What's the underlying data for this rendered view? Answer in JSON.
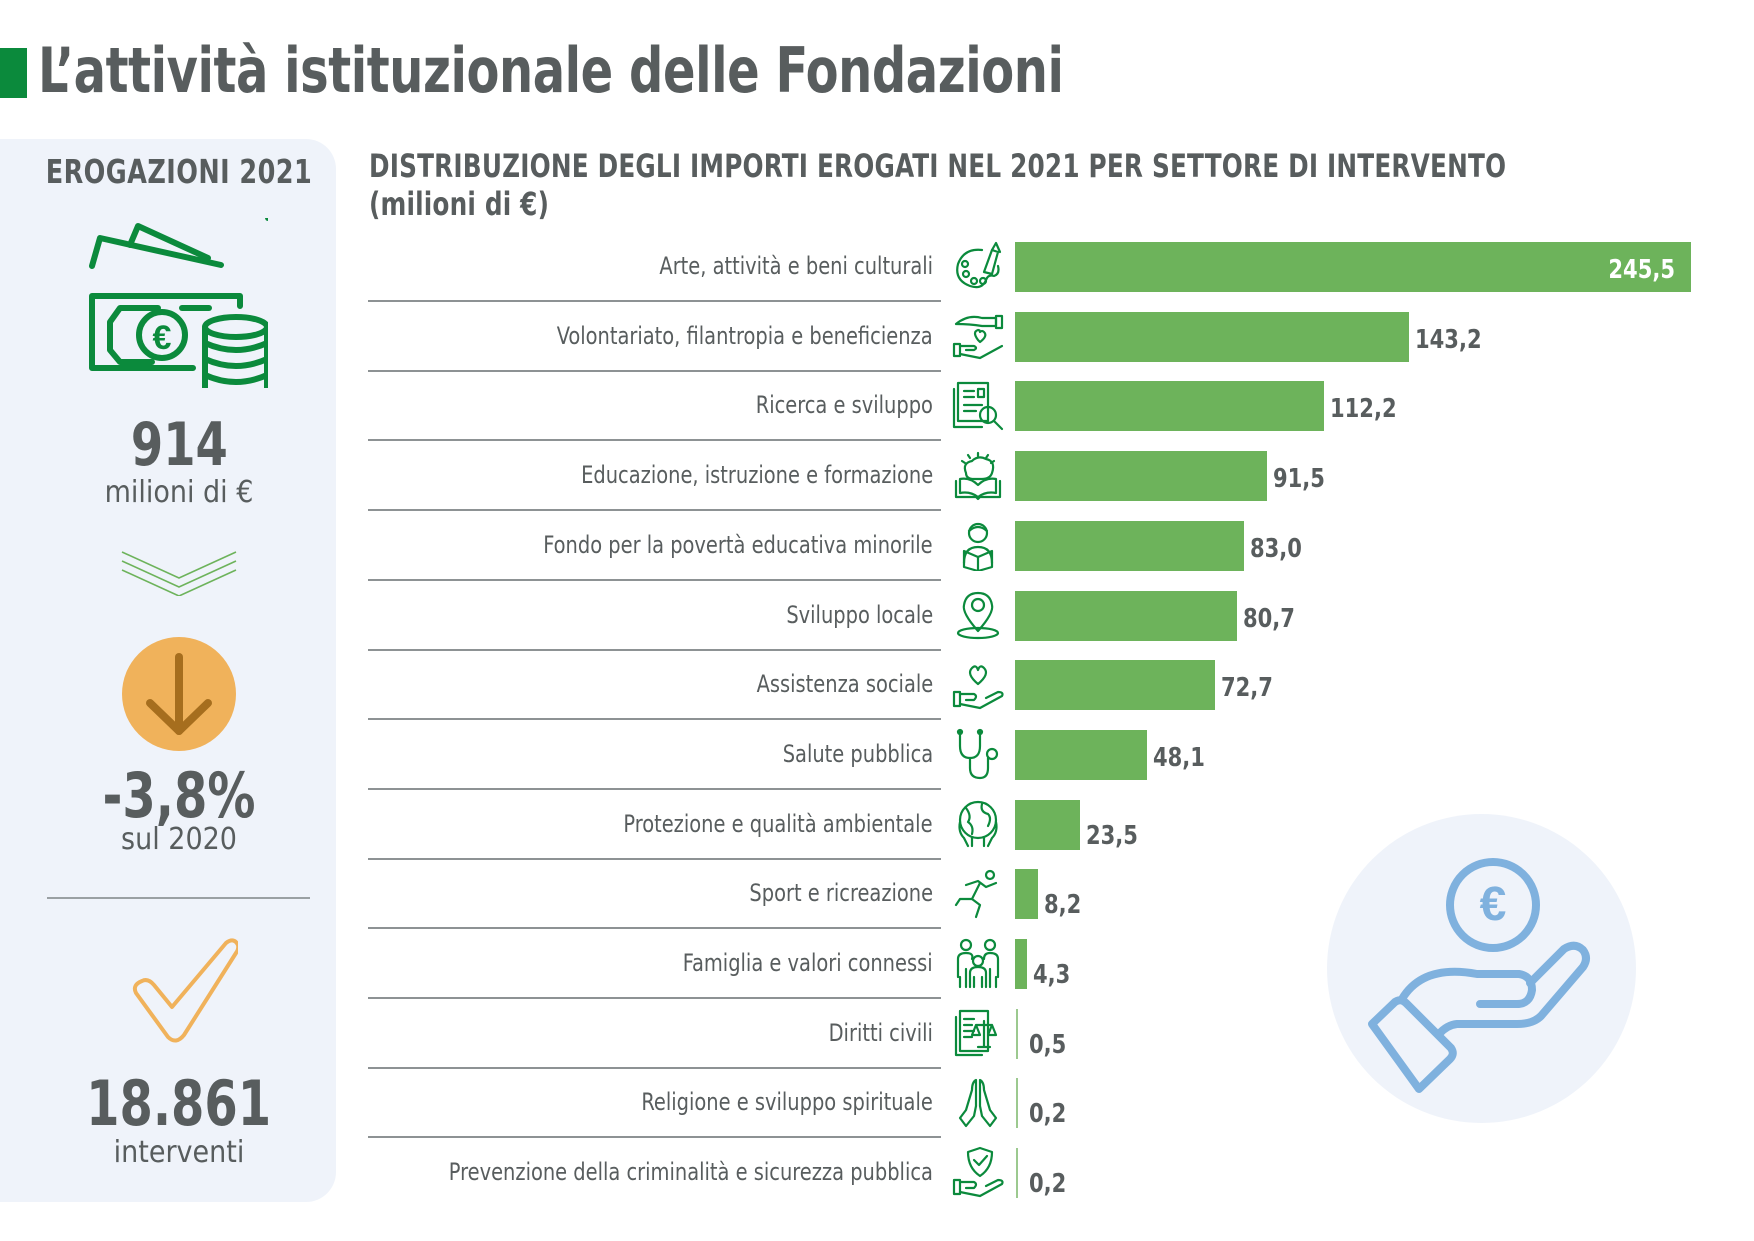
{
  "page": {
    "title": "L’attività istituzionale delle Fondazioni",
    "accent_color": "#0b8a3c"
  },
  "summary": {
    "heading": "EROGAZIONI 2021",
    "money_icon": "banknotes-coins-icon",
    "total_value": "914",
    "total_unit": "milioni di €",
    "trend_icon": "chevrons-down-icon",
    "change_icon": "arrow-down-circle-icon",
    "change_value": "-3,8%",
    "change_label": "sul 2020",
    "count_icon": "checkmark-icon",
    "count_value": "18.861",
    "count_label": "interventi",
    "change_color": "#f0b25b"
  },
  "chart_data": {
    "type": "bar",
    "orientation": "horizontal",
    "title": "DISTRIBUZIONE DEGLI IMPORTI EROGATI NEL 2021 PER SETTORE DI INTERVENTO",
    "subtitle": "(milioni di €)",
    "xlabel": "",
    "ylabel": "",
    "xlim": [
      0,
      245.5
    ],
    "bar_color": "#6db35b",
    "categories": [
      "Arte, attività e beni culturali",
      "Volontariato, filantropia e beneficienza",
      "Ricerca e sviluppo",
      "Educazione, istruzione e formazione",
      "Fondo per la povertà educativa minorile",
      "Sviluppo locale",
      "Assistenza sociale",
      "Salute pubblica",
      "Protezione e qualità ambientale",
      "Sport e ricreazione",
      "Famiglia e valori connessi",
      "Diritti civili",
      "Religione e sviluppo spirituale",
      "Prevenzione della criminalità e sicurezza pubblica"
    ],
    "values": [
      245.5,
      143.2,
      112.2,
      91.5,
      83.0,
      80.7,
      72.7,
      48.1,
      23.5,
      8.2,
      4.3,
      0.5,
      0.2,
      0.2
    ],
    "value_labels": [
      "245,5",
      "143,2",
      "112,2",
      "91,5",
      "83,0",
      "80,7",
      "72,7",
      "48,1",
      "23,5",
      "8,2",
      "4,3",
      "0,5",
      "0,2",
      "0,2"
    ],
    "icons": [
      "palette-brush-icon",
      "hands-heart-icon",
      "research-document-magnifier-icon",
      "brain-book-icon",
      "child-reading-icon",
      "map-pin-icon",
      "heart-hand-icon",
      "stethoscope-icon",
      "globe-hands-icon",
      "runner-icon",
      "family-icon",
      "document-scales-icon",
      "praying-hands-icon",
      "shield-hand-icon"
    ]
  },
  "decoration": {
    "icon": "euro-coin-hand-icon",
    "color": "#7fb1de"
  }
}
